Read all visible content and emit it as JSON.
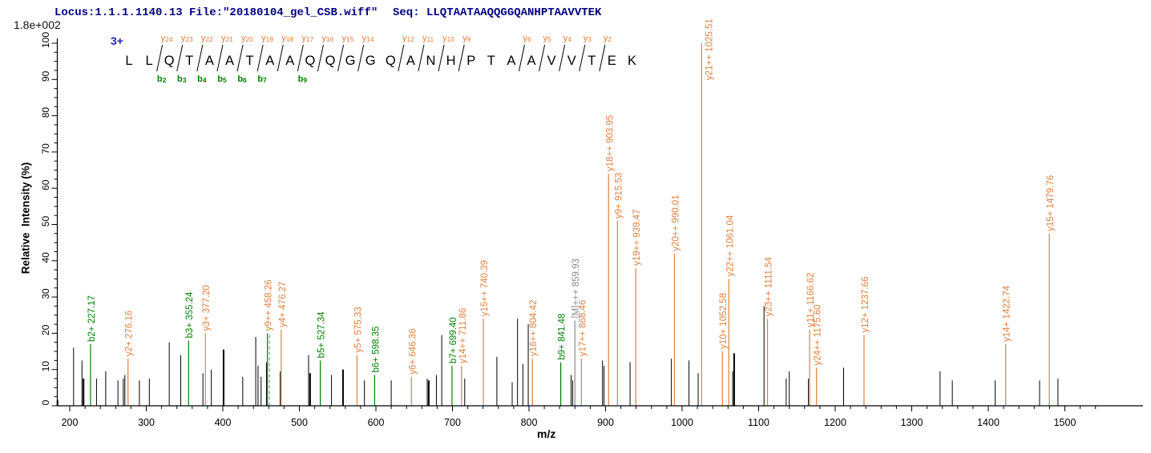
{
  "header": {
    "locus_file": "Locus:1.1.1.1140.13 File:\"20180104_gel_CSB.wiff\"",
    "seq": "Seq: LLQTAATAAQQGGQANHPTAAVVTEK",
    "max_intensity_label": "1.8e+002"
  },
  "axes": {
    "x_label": "m/z",
    "y_label": "Relative  Intensity (%)"
  },
  "colors": {
    "y_ion": "#DF7F3B",
    "b_ion": "#007F00",
    "b_ion_dashed": "#55BB66",
    "precursor": "#888888",
    "peak_default": "#000000",
    "header_text": "#000080",
    "charge_text": "#2222CC",
    "axis": "#000000"
  },
  "ladder": {
    "charge_label": "3+",
    "residues": [
      "L",
      "L",
      "Q",
      "T",
      "A",
      "A",
      "T",
      "A",
      "A",
      "Q",
      "Q",
      "G",
      "G",
      "Q",
      "A",
      "N",
      "H",
      "P",
      "T",
      "A",
      "A",
      "V",
      "V",
      "T",
      "E",
      "K"
    ],
    "cuts": [
      {
        "after": 1,
        "y": "y24",
        "b": "b2"
      },
      {
        "after": 2,
        "y": "y23",
        "b": "b3"
      },
      {
        "after": 3,
        "y": "y22",
        "b": "b4"
      },
      {
        "after": 4,
        "y": "y21",
        "b": "b5"
      },
      {
        "after": 5,
        "y": "y20",
        "b": "b6"
      },
      {
        "after": 6,
        "y": "y19",
        "b": "b7"
      },
      {
        "after": 7,
        "y": "y18",
        "b": null
      },
      {
        "after": 8,
        "y": "y17",
        "b": "b9"
      },
      {
        "after": 9,
        "y": "y16",
        "b": null
      },
      {
        "after": 10,
        "y": "y15",
        "b": null
      },
      {
        "after": 11,
        "y": "y14",
        "b": null
      },
      {
        "after": 13,
        "y": "y12",
        "b": null
      },
      {
        "after": 14,
        "y": "y11",
        "b": null
      },
      {
        "after": 15,
        "y": "y10",
        "b": null
      },
      {
        "after": 16,
        "y": "y9",
        "b": null
      },
      {
        "after": 19,
        "y": "y6",
        "b": null
      },
      {
        "after": 20,
        "y": "y5",
        "b": null
      },
      {
        "after": 21,
        "y": "y4",
        "b": null
      },
      {
        "after": 22,
        "y": "y3",
        "b": null
      },
      {
        "after": 23,
        "y": "y2",
        "b": null
      }
    ]
  },
  "chart_data": {
    "type": "bar",
    "variant": "ms2-stick-spectrum",
    "title": "",
    "xlabel": "m/z",
    "ylabel": "Relative  Intensity (%)",
    "xlim": [
      184,
      1556
    ],
    "ylim": [
      0,
      100
    ],
    "x_major_ticks": [
      200,
      300,
      400,
      500,
      600,
      700,
      800,
      900,
      1000,
      1100,
      1200,
      1300,
      1400,
      1500
    ],
    "x_minor_step": 20,
    "y_major_ticks": [
      0,
      10,
      20,
      30,
      40,
      50,
      60,
      70,
      80,
      90,
      100
    ],
    "y_minor_step": 2.5,
    "grid": false,
    "annotated_peaks": [
      {
        "mz": 227.17,
        "intensity": 17,
        "label": "b2+ 227.17",
        "ion": "b"
      },
      {
        "mz": 276.16,
        "intensity": 13,
        "label": "y2+ 276.16",
        "ion": "y"
      },
      {
        "mz": 355.24,
        "intensity": 18,
        "label": "b3+ 355.24",
        "ion": "b"
      },
      {
        "mz": 377.2,
        "intensity": 20,
        "label": "y3+ 377.20",
        "ion": "y"
      },
      {
        "mz": 458.26,
        "intensity": 20,
        "label": "y9++ 458.26",
        "ion": "yb-overlap"
      },
      {
        "mz": 476.27,
        "intensity": 21,
        "label": "y4+ 476.27",
        "ion": "y"
      },
      {
        "mz": 527.34,
        "intensity": 12.5,
        "label": "b5+ 527.34",
        "ion": "b"
      },
      {
        "mz": 575.33,
        "intensity": 14,
        "label": "y5+ 575.33",
        "ion": "y"
      },
      {
        "mz": 598.35,
        "intensity": 8.5,
        "label": "b6+ 598.35",
        "ion": "b"
      },
      {
        "mz": 646.36,
        "intensity": 8,
        "label": "y6+ 646.36",
        "ion": "y"
      },
      {
        "mz": 699.4,
        "intensity": 11,
        "label": "b7+ 699.40",
        "ion": "b"
      },
      {
        "mz": 711.86,
        "intensity": 11,
        "label": "y14++ 711.86",
        "ion": "y"
      },
      {
        "mz": 740.39,
        "intensity": 24,
        "label": "y15++ 740.39",
        "ion": "y"
      },
      {
        "mz": 804.42,
        "intensity": 13,
        "label": "y16++ 804.42",
        "ion": "y"
      },
      {
        "mz": 841.48,
        "intensity": 12,
        "label": "b9+ 841.48",
        "ion": "b"
      },
      {
        "mz": 859.93,
        "intensity": 23.5,
        "label": "[M]+++ 859.93",
        "ion": "precursor"
      },
      {
        "mz": 868.46,
        "intensity": 13,
        "label": "y17++ 868.46",
        "ion": "y"
      },
      {
        "mz": 903.95,
        "intensity": 64,
        "label": "y18++ 903.95",
        "ion": "y"
      },
      {
        "mz": 915.53,
        "intensity": 51,
        "label": "y9+ 915.53",
        "ion": "y"
      },
      {
        "mz": 939.47,
        "intensity": 38,
        "label": "y19++ 939.47",
        "ion": "y"
      },
      {
        "mz": 990.01,
        "intensity": 42,
        "label": "y20++ 990.01",
        "ion": "y"
      },
      {
        "mz": 1025.51,
        "intensity": 100,
        "label": "y21++ 1025.51",
        "ion": "y"
      },
      {
        "mz": 1052.58,
        "intensity": 15,
        "label": "y10+ 1052.58",
        "ion": "y"
      },
      {
        "mz": 1061.04,
        "intensity": 35,
        "label": "y22++ 1061.04",
        "ion": "y"
      },
      {
        "mz": 1111.54,
        "intensity": 24,
        "label": "y23++ 1111.54",
        "ion": "y"
      },
      {
        "mz": 1166.62,
        "intensity": 21,
        "label": "y11+ 1166.62",
        "ion": "y"
      },
      {
        "mz": 1175.6,
        "intensity": 10.5,
        "label": "y24++ 1175.60",
        "ion": "y"
      },
      {
        "mz": 1237.66,
        "intensity": 19.5,
        "label": "y12+ 1237.66",
        "ion": "y"
      },
      {
        "mz": 1422.74,
        "intensity": 17,
        "label": "y14+ 1422.74",
        "ion": "y"
      },
      {
        "mz": 1479.76,
        "intensity": 47.5,
        "label": "y15+ 1479.76",
        "ion": "y"
      }
    ],
    "unlabeled_peaks": [
      [
        184,
        1.5,
        2
      ],
      [
        205,
        16,
        1
      ],
      [
        216,
        12.5,
        1
      ],
      [
        218,
        7.5,
        2
      ],
      [
        235,
        7.5,
        1
      ],
      [
        247,
        9.5,
        1
      ],
      [
        263,
        7,
        1
      ],
      [
        270,
        7.5,
        1
      ],
      [
        272,
        8.5,
        1
      ],
      [
        291,
        7,
        1
      ],
      [
        304,
        7.5,
        1
      ],
      [
        330,
        17.5,
        1
      ],
      [
        345,
        14,
        1
      ],
      [
        374,
        9,
        1
      ],
      [
        385,
        10,
        1
      ],
      [
        401,
        15.5,
        2
      ],
      [
        426,
        8,
        1
      ],
      [
        443,
        19,
        1
      ],
      [
        446,
        11,
        1
      ],
      [
        450,
        8,
        1
      ],
      [
        457,
        12,
        1
      ],
      [
        475,
        9.5,
        1
      ],
      [
        512,
        14,
        1
      ],
      [
        514,
        9,
        2
      ],
      [
        542,
        8.5,
        1
      ],
      [
        557,
        10,
        2
      ],
      [
        585,
        7,
        1
      ],
      [
        620,
        7,
        1
      ],
      [
        667,
        7.5,
        1
      ],
      [
        669,
        7,
        2
      ],
      [
        679,
        8.5,
        1
      ],
      [
        686,
        19.5,
        1
      ],
      [
        716,
        7.5,
        1
      ],
      [
        758,
        13.5,
        1
      ],
      [
        778,
        6.5,
        1
      ],
      [
        785,
        24,
        1
      ],
      [
        792,
        11.5,
        1
      ],
      [
        799,
        22.5,
        1
      ],
      [
        855,
        8.5,
        1
      ],
      [
        857,
        7,
        1
      ],
      [
        896,
        12.5,
        1
      ],
      [
        898,
        11,
        1
      ],
      [
        932,
        12,
        1
      ],
      [
        986,
        13,
        1
      ],
      [
        1009,
        12.5,
        1
      ],
      [
        1021,
        9,
        1
      ],
      [
        1066,
        9.5,
        1
      ],
      [
        1068,
        14.5,
        2
      ],
      [
        1107,
        27.5,
        1
      ],
      [
        1136,
        7.5,
        1
      ],
      [
        1140,
        9.5,
        1
      ],
      [
        1165,
        7.5,
        1
      ],
      [
        1211,
        10.5,
        1
      ],
      [
        1337,
        9.5,
        1
      ],
      [
        1353,
        7,
        1
      ],
      [
        1409,
        7,
        1
      ],
      [
        1467,
        7,
        1
      ],
      [
        1491,
        7.5,
        1
      ]
    ]
  }
}
